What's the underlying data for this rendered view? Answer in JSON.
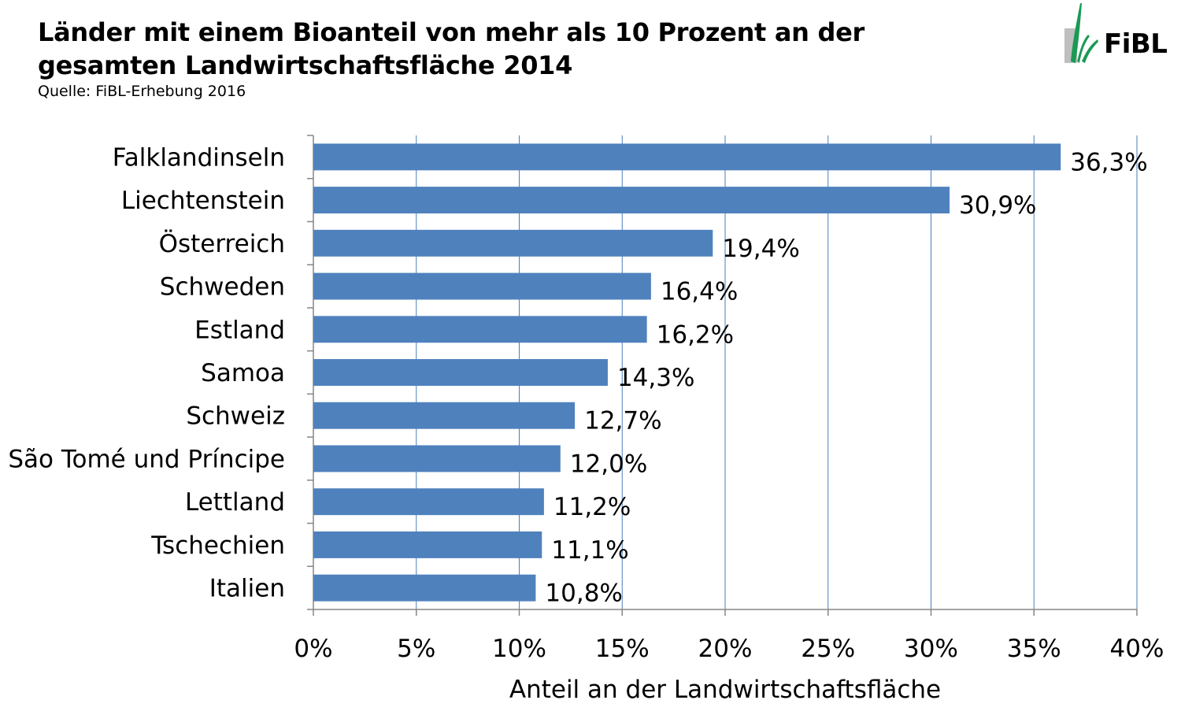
{
  "header": {
    "title_line1": "Länder mit einem Bioanteil von mehr als 10 Prozent an der",
    "title_line2": "gesamten Landwirtschaftsfläche 2014",
    "source": "Quelle: FiBL-Erhebung 2016"
  },
  "logo": {
    "text": "FiBL",
    "icon": "fibl-leaf-logo",
    "accent": "#1a9a54"
  },
  "colors": {
    "bar": "#4f81bd",
    "grid": "#4a7ebb",
    "axis": "#868686"
  },
  "chart_data": {
    "type": "bar",
    "orientation": "horizontal",
    "categories": [
      "Falklandinseln",
      "Liechtenstein",
      "Österreich",
      "Schweden",
      "Estland",
      "Samoa",
      "Schweiz",
      "São Tomé und Príncipe",
      "Lettland",
      "Tschechien",
      "Italien"
    ],
    "values": [
      36.3,
      30.9,
      19.4,
      16.4,
      16.2,
      14.3,
      12.7,
      12.0,
      11.2,
      11.1,
      10.8
    ],
    "value_labels": [
      "36,3%",
      "30,9%",
      "19,4%",
      "16,4%",
      "16,2%",
      "14,3%",
      "12,7%",
      "12,0%",
      "11,2%",
      "11,1%",
      "10,8%"
    ],
    "title": "Länder mit einem Bioanteil von mehr als 10 Prozent an der gesamten Landwirtschaftsfläche 2014",
    "xlabel": "Anteil an der Landwirtschaftsfläche",
    "ylabel": "",
    "xlim": [
      0,
      40
    ],
    "xticks": [
      0,
      5,
      10,
      15,
      20,
      25,
      30,
      35,
      40
    ],
    "xtick_labels": [
      "0%",
      "5%",
      "10%",
      "15%",
      "20%",
      "25%",
      "30%",
      "35%",
      "40%"
    ],
    "grid": "vertical",
    "legend": "none"
  }
}
